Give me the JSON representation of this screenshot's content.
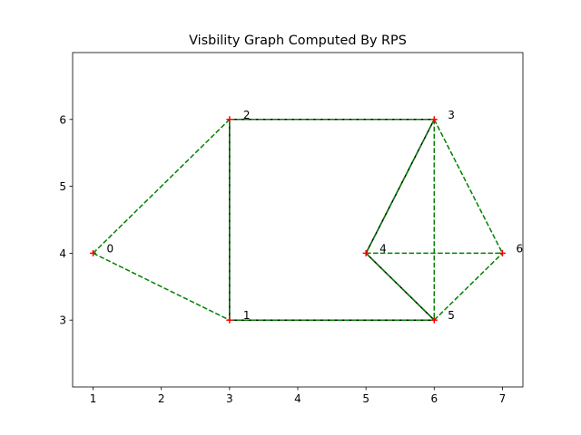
{
  "chart_data": {
    "type": "scatter",
    "title": "Visbility Graph Computed By RPS",
    "xlabel": "",
    "ylabel": "",
    "xlim": [
      0.7,
      7.3
    ],
    "ylim": [
      2.0,
      7.0
    ],
    "xticks": [
      1,
      2,
      3,
      4,
      5,
      6,
      7
    ],
    "yticks": [
      3,
      4,
      5,
      6
    ],
    "grid": false,
    "vertices": [
      {
        "id": "0",
        "x": 1,
        "y": 4
      },
      {
        "id": "1",
        "x": 3,
        "y": 3
      },
      {
        "id": "2",
        "x": 3,
        "y": 6
      },
      {
        "id": "3",
        "x": 6,
        "y": 6
      },
      {
        "id": "4",
        "x": 5,
        "y": 4
      },
      {
        "id": "5",
        "x": 6,
        "y": 3
      },
      {
        "id": "6",
        "x": 7,
        "y": 4
      }
    ],
    "obstacle_edges": [
      [
        1,
        2
      ],
      [
        2,
        3
      ],
      [
        1,
        5
      ],
      [
        3,
        4
      ],
      [
        4,
        5
      ]
    ],
    "visibility_edges": [
      [
        0,
        2
      ],
      [
        0,
        1
      ],
      [
        1,
        2
      ],
      [
        2,
        3
      ],
      [
        1,
        5
      ],
      [
        3,
        4
      ],
      [
        4,
        5
      ],
      [
        3,
        5
      ],
      [
        3,
        6
      ],
      [
        4,
        6
      ],
      [
        5,
        6
      ]
    ],
    "colors": {
      "obstacle": "#000000",
      "visibility": "#008000",
      "marker": "#ff0000"
    }
  }
}
